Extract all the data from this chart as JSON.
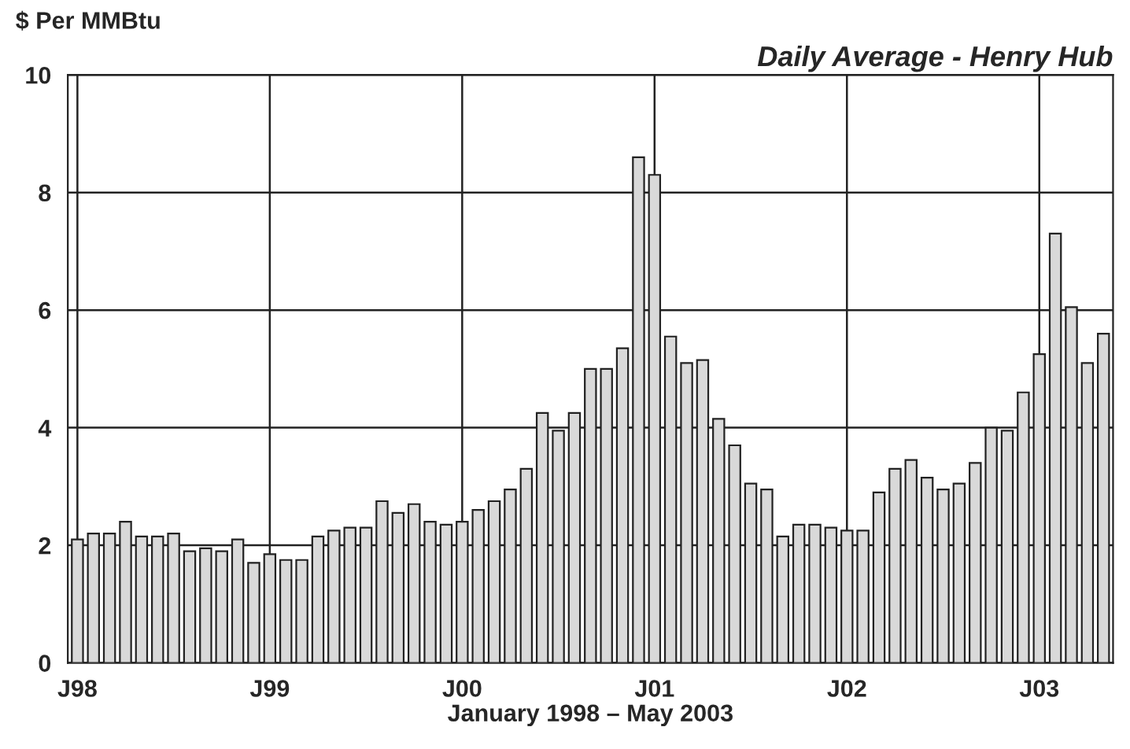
{
  "chart_data": {
    "type": "bar",
    "title": "Daily Average - Henry Hub",
    "ylabel": "$ Per MMBtu",
    "xlabel": "January 1998 – May 2003",
    "categories": [
      "J98",
      null,
      null,
      null,
      null,
      null,
      null,
      null,
      null,
      null,
      null,
      null,
      "J99",
      null,
      null,
      null,
      null,
      null,
      null,
      null,
      null,
      null,
      null,
      null,
      "J00",
      null,
      null,
      null,
      null,
      null,
      null,
      null,
      null,
      null,
      null,
      null,
      "J01",
      null,
      null,
      null,
      null,
      null,
      null,
      null,
      null,
      null,
      null,
      null,
      "J02",
      null,
      null,
      null,
      null,
      null,
      null,
      null,
      null,
      null,
      null,
      null,
      "J03",
      null,
      null,
      null,
      null
    ],
    "values": [
      2.1,
      2.2,
      2.2,
      2.4,
      2.15,
      2.15,
      2.2,
      1.9,
      1.95,
      1.9,
      2.1,
      1.7,
      1.85,
      1.75,
      1.75,
      2.15,
      2.25,
      2.3,
      2.3,
      2.75,
      2.55,
      2.7,
      2.4,
      2.35,
      2.4,
      2.6,
      2.75,
      2.95,
      3.3,
      4.25,
      3.95,
      4.25,
      5.0,
      5.0,
      5.35,
      8.6,
      8.3,
      5.55,
      5.1,
      5.15,
      4.15,
      3.7,
      3.05,
      2.95,
      2.15,
      2.35,
      2.35,
      2.3,
      2.25,
      2.25,
      2.9,
      3.3,
      3.45,
      3.15,
      2.95,
      3.05,
      3.4,
      4.0,
      3.95,
      4.6,
      5.25,
      7.3,
      6.05,
      5.1,
      5.6
    ],
    "color": "#d9d9d9",
    "ylim": [
      0,
      10
    ],
    "yticks": [
      0,
      2,
      4,
      6,
      8,
      10
    ],
    "grid": true
  }
}
